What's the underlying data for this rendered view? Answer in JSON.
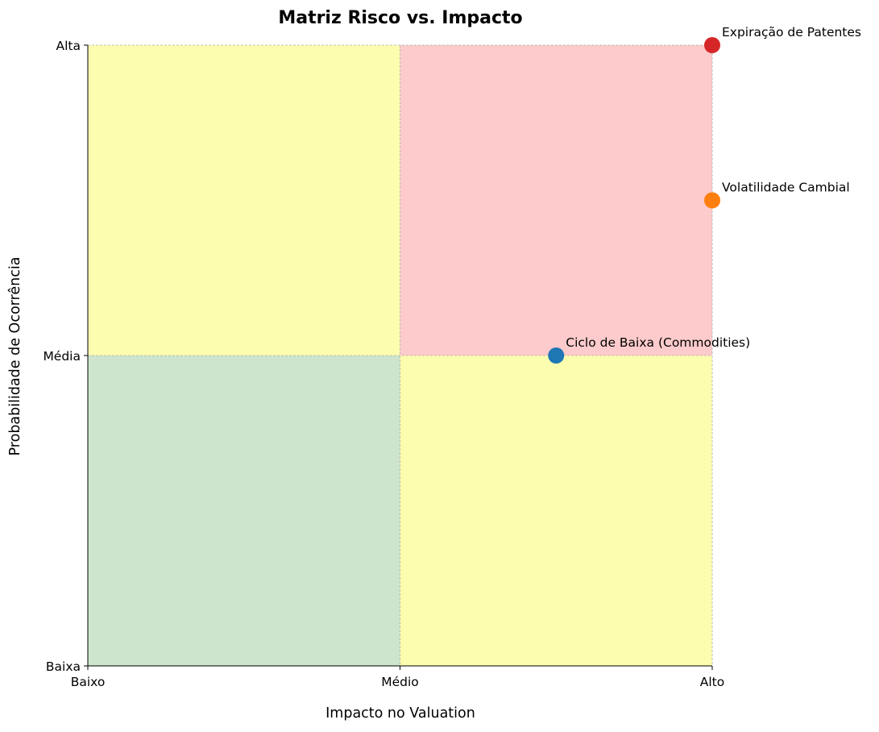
{
  "chart_data": {
    "type": "scatter",
    "title": "Matriz Risco vs. Impacto",
    "xlabel": "Impacto no Valuation",
    "ylabel": "Probabilidade de Ocorrência",
    "xlim": [
      0,
      2
    ],
    "ylim": [
      0,
      2
    ],
    "x_ticks": [
      {
        "value": 0,
        "label": "Baixo"
      },
      {
        "value": 1,
        "label": "Médio"
      },
      {
        "value": 2,
        "label": "Alto"
      }
    ],
    "y_ticks": [
      {
        "value": 0,
        "label": "Baixa"
      },
      {
        "value": 1,
        "label": "Média"
      },
      {
        "value": 2,
        "label": "Alta"
      }
    ],
    "grid": true,
    "quadrants": [
      {
        "x": [
          0,
          1
        ],
        "y": [
          0,
          1
        ],
        "color": "#cde4cd"
      },
      {
        "x": [
          1,
          2
        ],
        "y": [
          0,
          1
        ],
        "color": "#fdfdb0"
      },
      {
        "x": [
          0,
          1
        ],
        "y": [
          1,
          2
        ],
        "color": "#fdfdb0"
      },
      {
        "x": [
          1,
          2
        ],
        "y": [
          1,
          2
        ],
        "color": "#fdcbcb"
      }
    ],
    "points": [
      {
        "label": "Ciclo de Baixa (Commodities)",
        "x": 1.5,
        "y": 1.0,
        "color": "#1f77b4"
      },
      {
        "label": "Volatilidade Cambial",
        "x": 2.0,
        "y": 1.5,
        "color": "#ff7f0e"
      },
      {
        "label": "Expiração de Patentes",
        "x": 2.0,
        "y": 2.0,
        "color": "#d62728"
      }
    ]
  }
}
